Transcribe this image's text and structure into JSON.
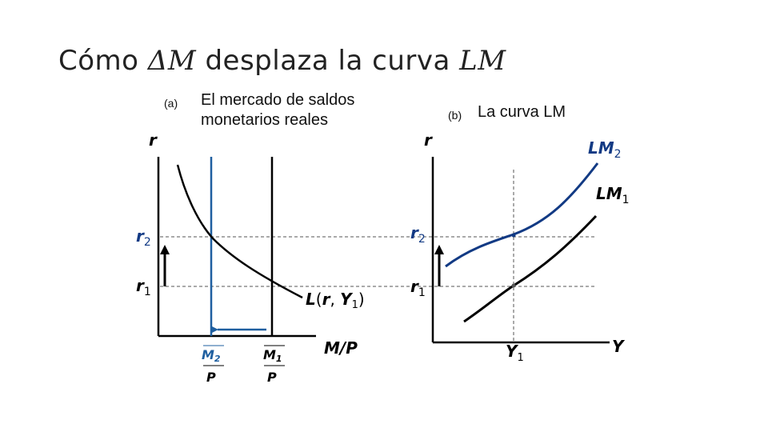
{
  "title": {
    "prefix": "Cómo ",
    "delta": "ΔM",
    "middle": " desplaza la curva ",
    "lm": "LM"
  },
  "panel_a": {
    "tag": "(a)",
    "caption_line1": "El mercado de saldos",
    "caption_line2": "monetarios reales",
    "y_axis_label": "r",
    "x_axis_label": "M/P",
    "r2_label": "r2",
    "r1_label": "r1",
    "demand_label": "L(r, Y1)",
    "m2_label": "M2",
    "m1_label": "M1",
    "p_label": "P"
  },
  "panel_b": {
    "tag": "(b)",
    "caption": "La curva LM",
    "y_axis_label": "r",
    "x_axis_label": "Y",
    "r2_label": "r2",
    "r1_label": "r1",
    "lm2_label": "LM2",
    "lm1_label": "LM1",
    "y1_label": "Y1"
  },
  "colors": {
    "blue": "#1f5fa0",
    "navy": "#123a84",
    "black": "#000000",
    "dashed": "#555555"
  }
}
